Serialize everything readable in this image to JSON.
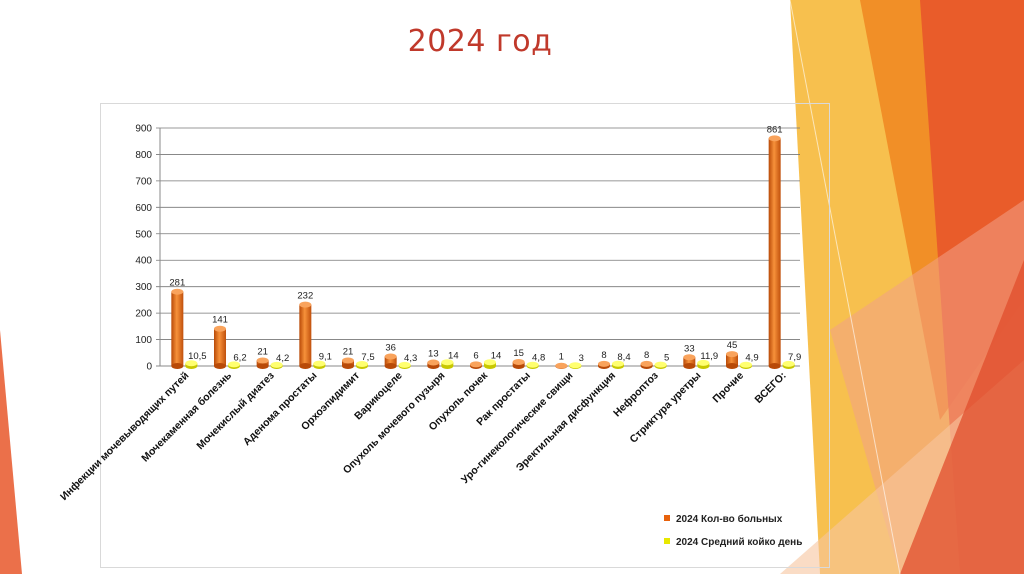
{
  "slide": {
    "title": "2024 год",
    "accent_colors": [
      "#f39c12",
      "#e67e22",
      "#e74c3c",
      "#f5b041"
    ]
  },
  "chart_data": {
    "type": "bar",
    "title": "",
    "xlabel": "",
    "ylabel": "",
    "ylim": [
      0,
      900
    ],
    "yticks": [
      0,
      100,
      200,
      300,
      400,
      500,
      600,
      700,
      800,
      900
    ],
    "grid": true,
    "legend_position": "bottom-right",
    "categories": [
      "Инфекции мочевыводящих путей",
      "Мочекаменная болезнь",
      "Мочекислый диатез",
      "Аденома простаты",
      "Орхоэпидимит",
      "Варикоцеле",
      "Опухоль мочевого пузыря",
      "Опухоль почек",
      "Рак простаты",
      "Уро-гинекологические свищи",
      "Эректильная дисфункция",
      "Нефроптоз",
      "Стриктура уретры",
      "Прочие",
      "ВСЕГО:"
    ],
    "series": [
      {
        "name": "2024 Кол-во больных",
        "color": "#e8620c",
        "values": [
          281,
          141,
          21,
          232,
          21,
          36,
          13,
          6,
          15,
          1,
          8,
          8,
          33,
          45,
          861
        ],
        "labels": [
          "281",
          "141",
          "21",
          "232",
          "21",
          "36",
          "13",
          "6",
          "15",
          "1",
          "8",
          "8",
          "33",
          "45",
          "861"
        ]
      },
      {
        "name": "2024 Средний койко день",
        "color": "#e8e800",
        "values": [
          10.5,
          6.2,
          4.2,
          9.1,
          7.5,
          4.3,
          14,
          14,
          4.8,
          3,
          8.4,
          5,
          11.9,
          4.9,
          7.9
        ],
        "labels": [
          "10,5",
          "6,2",
          "4,2",
          "9,1",
          "7,5",
          "4,3",
          "14",
          "14",
          "4,8",
          "3",
          "8,4",
          "5",
          "11,9",
          "4,9",
          "7,9"
        ]
      }
    ]
  }
}
